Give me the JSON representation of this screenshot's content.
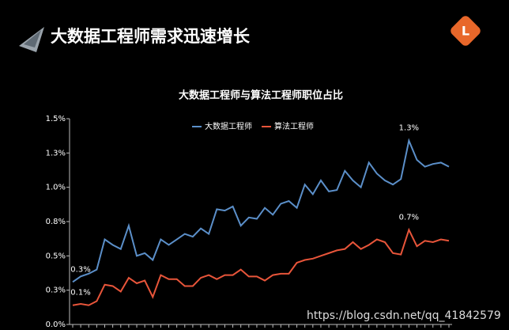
{
  "header": {
    "title": "大数据工程师需求迅速增长",
    "logo": "L"
  },
  "watermark": "https://blog.csdn.net/qq_41842579",
  "chart_data": {
    "type": "line",
    "title": "大数据工程师与算法工程师职位占比",
    "categories": [
      null,
      null,
      null,
      null,
      null,
      null,
      null,
      null,
      null,
      null,
      null,
      null,
      null,
      null,
      null,
      null,
      null,
      null,
      null,
      null,
      null,
      null,
      null,
      null,
      null,
      null,
      null,
      null,
      null,
      null,
      null,
      null,
      null,
      null,
      null,
      null,
      null,
      null,
      null,
      null,
      null,
      null,
      null,
      null,
      null,
      null,
      null,
      null
    ],
    "series": [
      {
        "name": "大数据工程师",
        "color": "#5b8fc9",
        "values": [
          0.31,
          0.35,
          0.37,
          0.4,
          0.62,
          0.58,
          0.55,
          0.72,
          0.5,
          0.52,
          0.47,
          0.62,
          0.58,
          0.62,
          0.66,
          0.64,
          0.7,
          0.66,
          0.84,
          0.83,
          0.86,
          0.72,
          0.78,
          0.77,
          0.85,
          0.8,
          0.88,
          0.9,
          0.85,
          1.02,
          0.95,
          1.05,
          0.97,
          0.98,
          1.12,
          1.05,
          1.0,
          1.18,
          1.1,
          1.05,
          1.02,
          1.06,
          1.34,
          1.2,
          1.15,
          1.17,
          1.18,
          1.15
        ],
        "value_labels": [
          "0.3%",
          null,
          null,
          null,
          null,
          null,
          null,
          null,
          null,
          null,
          null,
          null,
          null,
          null,
          null,
          null,
          null,
          null,
          null,
          null,
          null,
          null,
          null,
          null,
          null,
          null,
          null,
          null,
          null,
          null,
          null,
          null,
          null,
          null,
          null,
          null,
          null,
          null,
          null,
          null,
          null,
          null,
          "1.3%",
          null,
          null,
          null,
          null,
          null
        ]
      },
      {
        "name": "算法工程师",
        "color": "#e8553a",
        "values": [
          0.14,
          0.15,
          0.14,
          0.17,
          0.29,
          0.28,
          0.24,
          0.34,
          0.3,
          0.32,
          0.2,
          0.36,
          0.33,
          0.33,
          0.28,
          0.28,
          0.34,
          0.36,
          0.33,
          0.36,
          0.36,
          0.4,
          0.35,
          0.35,
          0.32,
          0.36,
          0.37,
          0.37,
          0.45,
          0.47,
          0.48,
          0.5,
          0.52,
          0.54,
          0.55,
          0.6,
          0.55,
          0.58,
          0.62,
          0.6,
          0.52,
          0.51,
          0.69,
          0.57,
          0.61,
          0.6,
          0.62,
          0.61
        ],
        "value_labels": [
          "0.1%",
          null,
          null,
          null,
          null,
          null,
          null,
          null,
          null,
          null,
          null,
          null,
          null,
          null,
          null,
          null,
          null,
          null,
          null,
          null,
          null,
          null,
          null,
          null,
          null,
          null,
          null,
          null,
          null,
          null,
          null,
          null,
          null,
          null,
          null,
          null,
          null,
          null,
          null,
          null,
          null,
          null,
          "0.7%",
          null,
          null,
          null,
          null,
          null
        ]
      }
    ],
    "ylim": [
      0,
      1.5
    ],
    "yticks": [
      {
        "value": 0,
        "label": "0.0%"
      },
      {
        "value": 0.25,
        "label": "0.3%"
      },
      {
        "value": 0.5,
        "label": "0.5%"
      },
      {
        "value": 0.75,
        "label": "0.8%"
      },
      {
        "value": 1.0,
        "label": "1.0%"
      },
      {
        "value": 1.25,
        "label": "1.3%"
      },
      {
        "value": 1.5,
        "label": "1.5%"
      }
    ],
    "grid": false,
    "legend": "top"
  }
}
